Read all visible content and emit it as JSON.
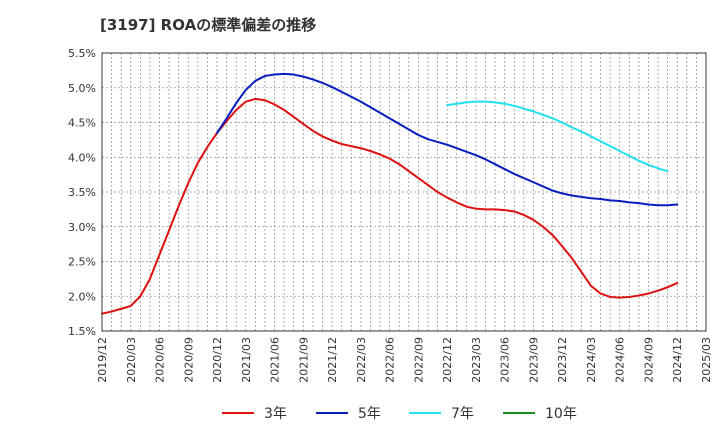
{
  "chart_data": {
    "type": "line",
    "title": "[3197]  ROAの標準偏差の推移",
    "xlabel": "",
    "ylabel": "",
    "ylim": [
      1.5,
      5.5
    ],
    "y_ticks": [
      "1.5%",
      "2.0%",
      "2.5%",
      "3.0%",
      "3.5%",
      "4.0%",
      "4.5%",
      "5.0%",
      "5.5%"
    ],
    "x_ticks": [
      "2019/12",
      "2020/03",
      "2020/06",
      "2020/09",
      "2020/12",
      "2021/03",
      "2021/06",
      "2021/09",
      "2021/12",
      "2022/03",
      "2022/06",
      "2022/09",
      "2022/12",
      "2023/03",
      "2023/06",
      "2023/09",
      "2023/12",
      "2024/03",
      "2024/06",
      "2024/09",
      "2024/12",
      "2025/03"
    ],
    "grid": true,
    "legend_position": "bottom",
    "series": [
      {
        "name": "3年",
        "color": "#dd1111",
        "points": [
          [
            "2019/12",
            1.75
          ],
          [
            "2020/01",
            1.78
          ],
          [
            "2020/02",
            1.82
          ],
          [
            "2020/03",
            1.86
          ],
          [
            "2020/04",
            2.0
          ],
          [
            "2020/05",
            2.25
          ],
          [
            "2020/06",
            2.6
          ],
          [
            "2020/07",
            2.95
          ],
          [
            "2020/08",
            3.3
          ],
          [
            "2020/09",
            3.63
          ],
          [
            "2020/10",
            3.92
          ],
          [
            "2020/11",
            4.15
          ],
          [
            "2020/12",
            4.35
          ],
          [
            "2021/01",
            4.52
          ],
          [
            "2021/02",
            4.68
          ],
          [
            "2021/03",
            4.8
          ],
          [
            "2021/04",
            4.84
          ],
          [
            "2021/05",
            4.82
          ],
          [
            "2021/06",
            4.76
          ],
          [
            "2021/07",
            4.68
          ],
          [
            "2021/08",
            4.58
          ],
          [
            "2021/09",
            4.48
          ],
          [
            "2021/10",
            4.38
          ],
          [
            "2021/11",
            4.3
          ],
          [
            "2021/12",
            4.24
          ],
          [
            "2022/01",
            4.19
          ],
          [
            "2022/02",
            4.16
          ],
          [
            "2022/03",
            4.13
          ],
          [
            "2022/04",
            4.09
          ],
          [
            "2022/05",
            4.04
          ],
          [
            "2022/06",
            3.98
          ],
          [
            "2022/07",
            3.9
          ],
          [
            "2022/08",
            3.8
          ],
          [
            "2022/09",
            3.7
          ],
          [
            "2022/10",
            3.6
          ],
          [
            "2022/11",
            3.5
          ],
          [
            "2022/12",
            3.42
          ],
          [
            "2023/01",
            3.35
          ],
          [
            "2023/02",
            3.29
          ],
          [
            "2023/03",
            3.26
          ],
          [
            "2023/04",
            3.25
          ],
          [
            "2023/05",
            3.25
          ],
          [
            "2023/06",
            3.24
          ],
          [
            "2023/07",
            3.22
          ],
          [
            "2023/08",
            3.17
          ],
          [
            "2023/09",
            3.1
          ],
          [
            "2023/10",
            3.0
          ],
          [
            "2023/11",
            2.88
          ],
          [
            "2023/12",
            2.72
          ],
          [
            "2024/01",
            2.55
          ],
          [
            "2024/02",
            2.35
          ],
          [
            "2024/03",
            2.15
          ],
          [
            "2024/04",
            2.04
          ],
          [
            "2024/05",
            1.99
          ],
          [
            "2024/06",
            1.98
          ],
          [
            "2024/07",
            1.99
          ],
          [
            "2024/08",
            2.01
          ],
          [
            "2024/09",
            2.04
          ],
          [
            "2024/10",
            2.08
          ],
          [
            "2024/11",
            2.13
          ],
          [
            "2024/12",
            2.19
          ]
        ]
      },
      {
        "name": "5年",
        "color": "#0a1ebe",
        "points": [
          [
            "2020/12",
            4.35
          ],
          [
            "2021/01",
            4.56
          ],
          [
            "2021/02",
            4.78
          ],
          [
            "2021/03",
            4.97
          ],
          [
            "2021/04",
            5.1
          ],
          [
            "2021/05",
            5.17
          ],
          [
            "2021/06",
            5.19
          ],
          [
            "2021/07",
            5.2
          ],
          [
            "2021/08",
            5.19
          ],
          [
            "2021/09",
            5.16
          ],
          [
            "2021/10",
            5.12
          ],
          [
            "2021/11",
            5.07
          ],
          [
            "2021/12",
            5.01
          ],
          [
            "2022/01",
            4.94
          ],
          [
            "2022/02",
            4.87
          ],
          [
            "2022/03",
            4.8
          ],
          [
            "2022/04",
            4.72
          ],
          [
            "2022/05",
            4.64
          ],
          [
            "2022/06",
            4.56
          ],
          [
            "2022/07",
            4.48
          ],
          [
            "2022/08",
            4.4
          ],
          [
            "2022/09",
            4.32
          ],
          [
            "2022/10",
            4.26
          ],
          [
            "2022/11",
            4.22
          ],
          [
            "2022/12",
            4.18
          ],
          [
            "2023/01",
            4.13
          ],
          [
            "2023/02",
            4.08
          ],
          [
            "2023/03",
            4.03
          ],
          [
            "2023/04",
            3.97
          ],
          [
            "2023/05",
            3.9
          ],
          [
            "2023/06",
            3.83
          ],
          [
            "2023/07",
            3.76
          ],
          [
            "2023/08",
            3.7
          ],
          [
            "2023/09",
            3.64
          ],
          [
            "2023/10",
            3.58
          ],
          [
            "2023/11",
            3.52
          ],
          [
            "2023/12",
            3.48
          ],
          [
            "2024/01",
            3.45
          ],
          [
            "2024/02",
            3.43
          ],
          [
            "2024/03",
            3.41
          ],
          [
            "2024/04",
            3.4
          ],
          [
            "2024/05",
            3.38
          ],
          [
            "2024/06",
            3.37
          ],
          [
            "2024/07",
            3.35
          ],
          [
            "2024/08",
            3.34
          ],
          [
            "2024/09",
            3.32
          ],
          [
            "2024/10",
            3.31
          ],
          [
            "2024/11",
            3.31
          ],
          [
            "2024/12",
            3.32
          ]
        ]
      },
      {
        "name": "7年",
        "color": "#22e0f0",
        "points": [
          [
            "2022/12",
            4.75
          ],
          [
            "2023/01",
            4.77
          ],
          [
            "2023/02",
            4.79
          ],
          [
            "2023/03",
            4.8
          ],
          [
            "2023/04",
            4.8
          ],
          [
            "2023/05",
            4.79
          ],
          [
            "2023/06",
            4.77
          ],
          [
            "2023/07",
            4.74
          ],
          [
            "2023/08",
            4.7
          ],
          [
            "2023/09",
            4.66
          ],
          [
            "2023/10",
            4.61
          ],
          [
            "2023/11",
            4.56
          ],
          [
            "2023/12",
            4.5
          ],
          [
            "2024/01",
            4.43
          ],
          [
            "2024/02",
            4.37
          ],
          [
            "2024/03",
            4.3
          ],
          [
            "2024/04",
            4.23
          ],
          [
            "2024/05",
            4.16
          ],
          [
            "2024/06",
            4.09
          ],
          [
            "2024/07",
            4.02
          ],
          [
            "2024/08",
            3.95
          ],
          [
            "2024/09",
            3.89
          ],
          [
            "2024/10",
            3.84
          ],
          [
            "2024/11",
            3.8
          ]
        ]
      },
      {
        "name": "10年",
        "color": "#1a8c1a",
        "points": []
      }
    ]
  }
}
